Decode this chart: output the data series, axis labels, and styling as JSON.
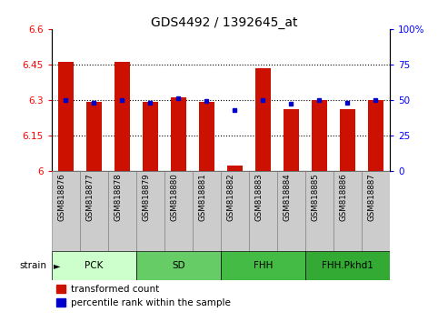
{
  "title": "GDS4492 / 1392645_at",
  "samples": [
    "GSM818876",
    "GSM818877",
    "GSM818878",
    "GSM818879",
    "GSM818880",
    "GSM818881",
    "GSM818882",
    "GSM818883",
    "GSM818884",
    "GSM818885",
    "GSM818886",
    "GSM818887"
  ],
  "red_values": [
    6.46,
    6.29,
    6.46,
    6.29,
    6.31,
    6.29,
    6.02,
    6.435,
    6.26,
    6.3,
    6.26,
    6.3
  ],
  "blue_values": [
    50,
    48,
    50,
    48,
    51,
    49,
    43,
    50,
    47,
    50,
    48,
    50
  ],
  "ylim_left": [
    6.0,
    6.6
  ],
  "ylim_right": [
    0,
    100
  ],
  "yticks_left": [
    6.0,
    6.15,
    6.3,
    6.45,
    6.6
  ],
  "yticks_right": [
    0,
    25,
    50,
    75,
    100
  ],
  "ytick_labels_left": [
    "6",
    "6.15",
    "6.3",
    "6.45",
    "6.6"
  ],
  "ytick_labels_right": [
    "0",
    "25",
    "50",
    "75",
    "100%"
  ],
  "groups": [
    {
      "label": "PCK",
      "start": 0,
      "end": 3,
      "color": "#ccffcc"
    },
    {
      "label": "SD",
      "start": 3,
      "end": 6,
      "color": "#66cc66"
    },
    {
      "label": "FHH",
      "start": 6,
      "end": 9,
      "color": "#44bb44"
    },
    {
      "label": "FHH.Pkhd1",
      "start": 9,
      "end": 12,
      "color": "#33aa33"
    }
  ],
  "bar_color": "#cc1100",
  "dot_color": "#0000cc",
  "bar_width": 0.55,
  "base_value": 6.0,
  "background_color": "#ffffff",
  "plot_bg_color": "#ffffff",
  "tick_area_color": "#cccccc",
  "strain_label": "strain"
}
